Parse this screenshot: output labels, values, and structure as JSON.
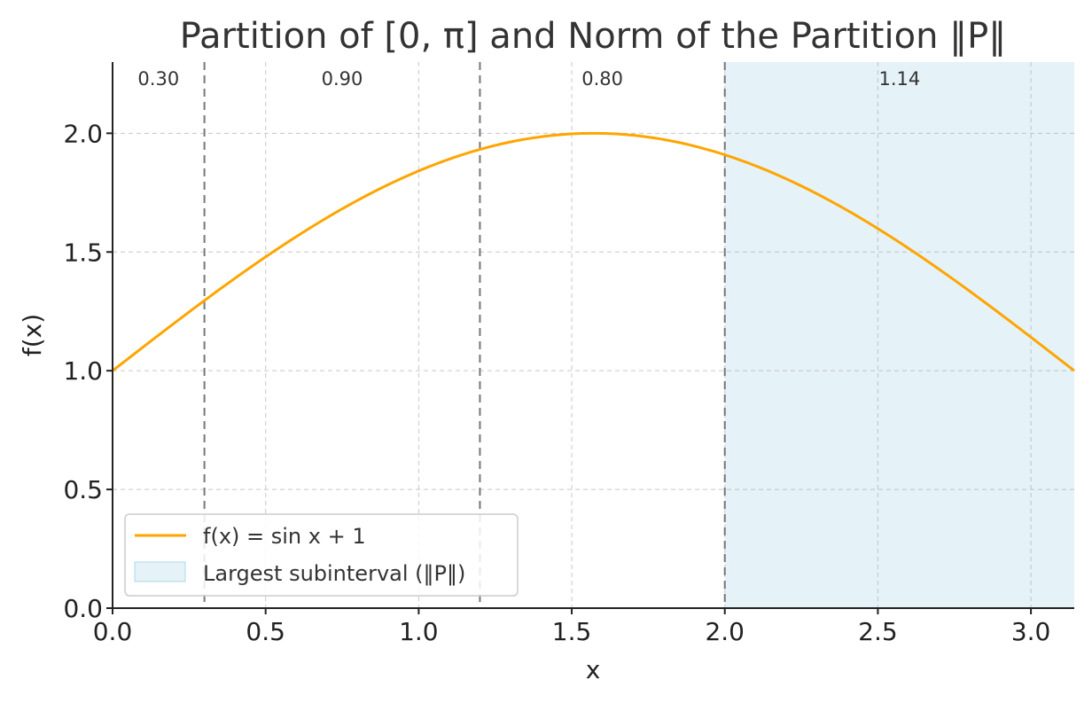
{
  "chart_data": {
    "type": "line",
    "title": "Partition of [0, π] and Norm of the Partition ‖P‖",
    "xlabel": "x",
    "ylabel": "f(x)",
    "xlim": [
      0,
      3.14159
    ],
    "ylim": [
      0,
      2.3
    ],
    "x_ticks": [
      0.0,
      0.5,
      1.0,
      1.5,
      2.0,
      2.5,
      3.0
    ],
    "x_tick_labels": [
      "0.0",
      "0.5",
      "1.0",
      "1.5",
      "2.0",
      "2.5",
      "3.0"
    ],
    "y_ticks": [
      0.0,
      0.5,
      1.0,
      1.5,
      2.0
    ],
    "y_tick_labels": [
      "0.0",
      "0.5",
      "1.0",
      "1.5",
      "2.0"
    ],
    "grid": true,
    "series": [
      {
        "name": "f(x) = sin x + 1",
        "color": "#FFA500",
        "function": "sin(x) + 1",
        "x": [
          0.0,
          0.3,
          0.5,
          1.0,
          1.2,
          1.5708,
          2.0,
          2.5,
          3.0,
          3.14159
        ],
        "y": [
          1.0,
          1.2955,
          1.4794,
          1.8415,
          1.932,
          2.0,
          1.9093,
          1.5985,
          1.1411,
          1.0
        ]
      }
    ],
    "partition_points": [
      0.0,
      0.3,
      1.2,
      2.0,
      3.14159
    ],
    "subinterval_widths": [
      0.3,
      0.9,
      0.8,
      1.14
    ],
    "subinterval_width_labels": [
      "0.30",
      "0.90",
      "0.80",
      "1.14"
    ],
    "largest_subinterval": {
      "name": "Largest subinterval (‖P‖)",
      "start": 2.0,
      "end": 3.14159,
      "color": "#ADD8E6"
    },
    "legend": {
      "position": "lower-left",
      "entries": [
        "f(x) = sin x + 1",
        "Largest subinterval (‖P‖)"
      ]
    }
  }
}
